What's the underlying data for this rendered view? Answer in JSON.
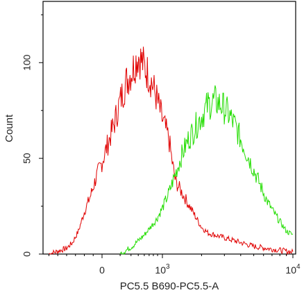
{
  "chart_data": {
    "type": "line",
    "title": "",
    "xlabel": "PC5.5 B690-PC5.5-A",
    "ylabel": "Count",
    "x_scale": "biexponential",
    "x_tick_labels": [
      {
        "base": "0",
        "exp": ""
      },
      {
        "base": "10",
        "exp": "3"
      },
      {
        "base": "10",
        "exp": "4"
      }
    ],
    "xlim": [
      "-10^3",
      "10^4"
    ],
    "ylim": [
      0,
      132
    ],
    "y_ticks": [
      0,
      50,
      100
    ],
    "y_tick_labels": [
      "0",
      "50",
      "100"
    ],
    "grid": false,
    "series": [
      {
        "color": "#e00000",
        "points": [
          [
            -0.9,
            0
          ],
          [
            -0.8,
            1
          ],
          [
            -0.7,
            2
          ],
          [
            -0.6,
            3
          ],
          [
            -0.5,
            6
          ],
          [
            -0.4,
            12
          ],
          [
            -0.3,
            22
          ],
          [
            -0.2,
            30
          ],
          [
            -0.1,
            40
          ],
          [
            0,
            48
          ],
          [
            0.1,
            58
          ],
          [
            0.2,
            68
          ],
          [
            0.3,
            80
          ],
          [
            0.4,
            90
          ],
          [
            0.5,
            96
          ],
          [
            0.55,
            100
          ],
          [
            0.6,
            104
          ],
          [
            0.7,
            98
          ],
          [
            0.8,
            92
          ],
          [
            0.9,
            82
          ],
          [
            1.0,
            70
          ],
          [
            1.1,
            60
          ],
          [
            1.15,
            48
          ],
          [
            1.2,
            38
          ],
          [
            1.3,
            32
          ],
          [
            1.4,
            26
          ],
          [
            1.5,
            20
          ],
          [
            1.6,
            14
          ],
          [
            1.7,
            11
          ],
          [
            1.8,
            10
          ],
          [
            2.0,
            8
          ],
          [
            2.2,
            6
          ],
          [
            2.4,
            4
          ],
          [
            2.6,
            3
          ],
          [
            2.8,
            2
          ],
          [
            3.0,
            1
          ]
        ]
      },
      {
        "color": "#22dd00",
        "points": [
          [
            0.3,
            0
          ],
          [
            0.4,
            2
          ],
          [
            0.5,
            4
          ],
          [
            0.6,
            7
          ],
          [
            0.7,
            10
          ],
          [
            0.8,
            14
          ],
          [
            0.9,
            18
          ],
          [
            1.0,
            24
          ],
          [
            1.1,
            32
          ],
          [
            1.2,
            42
          ],
          [
            1.3,
            52
          ],
          [
            1.4,
            60
          ],
          [
            1.5,
            66
          ],
          [
            1.6,
            72
          ],
          [
            1.7,
            78
          ],
          [
            1.8,
            80
          ],
          [
            1.9,
            78
          ],
          [
            2.0,
            74
          ],
          [
            2.1,
            68
          ],
          [
            2.2,
            60
          ],
          [
            2.3,
            52
          ],
          [
            2.4,
            44
          ],
          [
            2.5,
            36
          ],
          [
            2.6,
            28
          ],
          [
            2.7,
            22
          ],
          [
            2.8,
            17
          ],
          [
            2.9,
            12
          ],
          [
            3.0,
            10
          ]
        ]
      }
    ]
  }
}
